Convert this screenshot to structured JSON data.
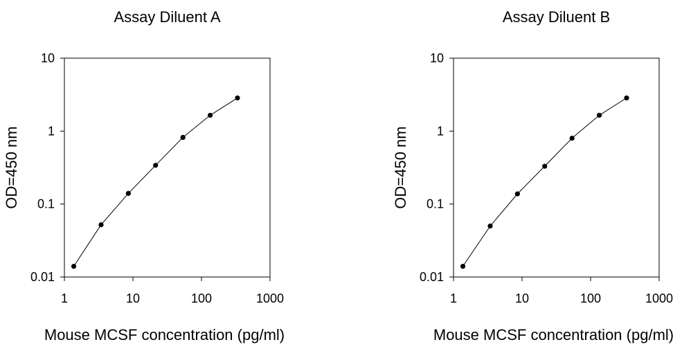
{
  "chart_data": [
    {
      "type": "line",
      "title": "Assay Diluent A",
      "xlabel": "Mouse MCSF concentration (pg/ml)",
      "ylabel": "OD=450 nm",
      "xscale": "log",
      "yscale": "log",
      "xlim": [
        1,
        1000
      ],
      "ylim": [
        0.01,
        10
      ],
      "xticks": [
        1,
        10,
        100,
        1000
      ],
      "xtick_labels": [
        "1",
        "10",
        "100",
        "1000"
      ],
      "yticks": [
        0.01,
        0.1,
        1,
        10
      ],
      "ytick_labels": [
        "0.01",
        "0.1",
        "1",
        "10"
      ],
      "grid": false,
      "marker": "filled-circle",
      "series": [
        {
          "x": [
            1.37,
            3.43,
            8.57,
            21.4,
            53.6,
            134,
            335
          ],
          "y": [
            0.014,
            0.052,
            0.14,
            0.34,
            0.82,
            1.65,
            2.85
          ]
        }
      ]
    },
    {
      "type": "line",
      "title": "Assay Diluent B",
      "xlabel": "Mouse MCSF concentration (pg/ml)",
      "ylabel": "OD=450 nm",
      "xscale": "log",
      "yscale": "log",
      "xlim": [
        1,
        1000
      ],
      "ylim": [
        0.01,
        10
      ],
      "xticks": [
        1,
        10,
        100,
        1000
      ],
      "xtick_labels": [
        "1",
        "10",
        "100",
        "1000"
      ],
      "yticks": [
        0.01,
        0.1,
        1,
        10
      ],
      "ytick_labels": [
        "0.01",
        "0.1",
        "1",
        "10"
      ],
      "grid": false,
      "marker": "filled-circle",
      "series": [
        {
          "x": [
            1.37,
            3.43,
            8.57,
            21.4,
            53.6,
            134,
            335
          ],
          "y": [
            0.014,
            0.05,
            0.138,
            0.33,
            0.8,
            1.65,
            2.85
          ]
        }
      ]
    }
  ]
}
